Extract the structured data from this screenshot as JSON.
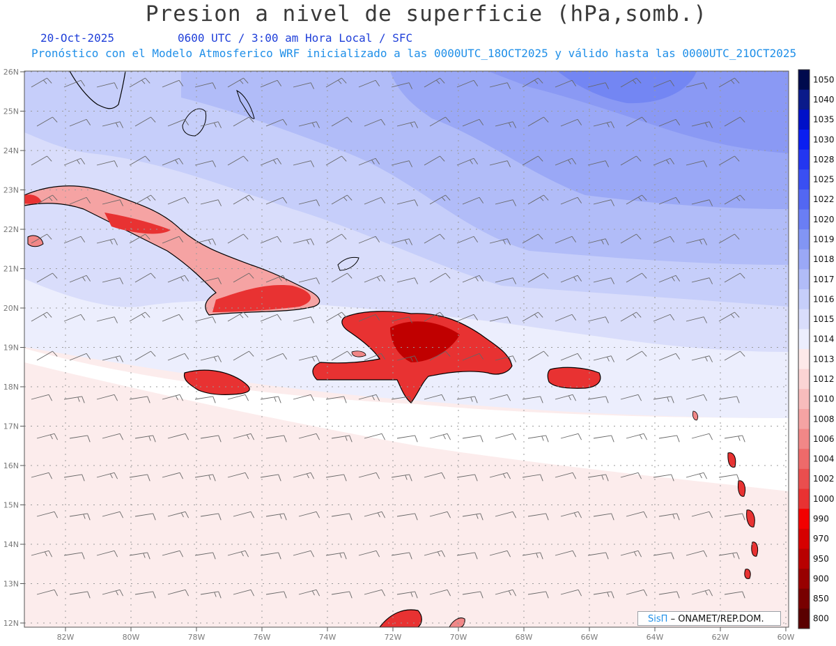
{
  "header": {
    "title": "Presion a nivel de superficie (hPa,somb.)",
    "date": "20-Oct-2025",
    "time_line": "0600 UTC / 3:00 am Hora Local / SFC",
    "forecast_line": "Pronóstico con el Modelo Atmosferico WRF inicializado a las 0000UTC_18OCT2025 y válido hasta las  0000UTC_21OCT2025"
  },
  "map": {
    "lat_labels": [
      "26N",
      "25N",
      "24N",
      "23N",
      "22N",
      "21N",
      "20N",
      "19N",
      "18N",
      "17N",
      "16N",
      "15N",
      "14N",
      "13N",
      "12N"
    ],
    "lon_labels": [
      "82W",
      "80W",
      "78W",
      "76W",
      "74W",
      "72W",
      "70W",
      "68W",
      "66W",
      "64W",
      "62W",
      "60W"
    ]
  },
  "colorbar": {
    "labels": [
      "1050",
      "1040",
      "1035",
      "1030",
      "1028",
      "1025",
      "1022",
      "1020",
      "1019",
      "1018",
      "1017",
      "1016",
      "1015",
      "1014",
      "1013",
      "1012",
      "1010",
      "1008",
      "1006",
      "1004",
      "1002",
      "1000",
      "990",
      "970",
      "950",
      "900",
      "850",
      "800"
    ],
    "colors": [
      "#000a4d",
      "#0a1a8a",
      "#0010c8",
      "#0a1ef0",
      "#2336f0",
      "#3a4ff2",
      "#5367f2",
      "#6a7ef4",
      "#8295f4",
      "#9aa8f6",
      "#b1bcf8",
      "#c6cefa",
      "#d9ddfb",
      "#eceefd",
      "#fde9e9",
      "#fbd4d4",
      "#f8bcbc",
      "#f5a3a3",
      "#f18787",
      "#ee6a6a",
      "#ea4e4e",
      "#e83232",
      "#f20000",
      "#d60000",
      "#b80000",
      "#980000",
      "#780000",
      "#5a0000"
    ]
  },
  "credit": {
    "brand": "SisΠ",
    "org": "– ONAMET/REP.DOM."
  }
}
